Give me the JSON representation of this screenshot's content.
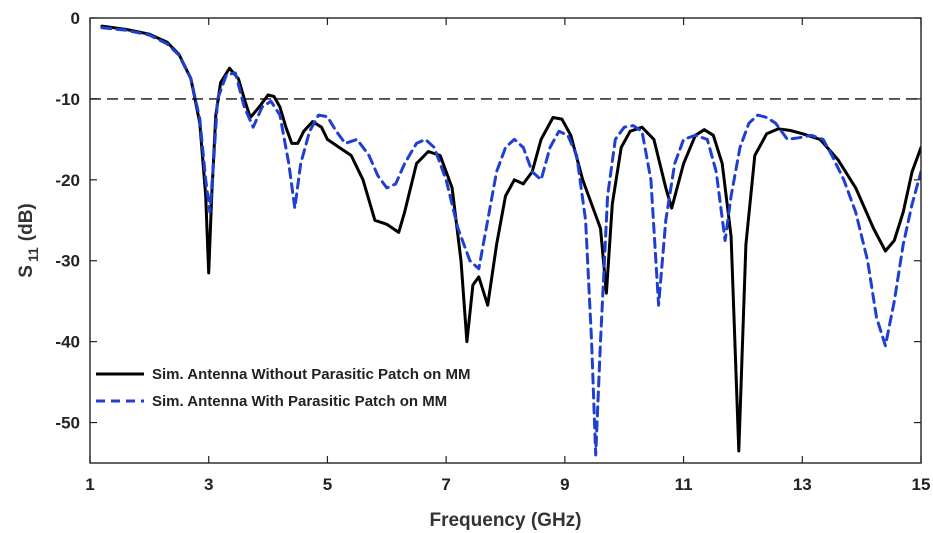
{
  "chart_data": {
    "type": "line",
    "xlabel": "Frequency (GHz)",
    "ylabel": {
      "base": "S",
      "sub": "11",
      "unit": "(dB)"
    },
    "xlim": [
      1,
      15
    ],
    "ylim": [
      -55,
      0
    ],
    "xticks": [
      "1",
      "3",
      "5",
      "7",
      "9",
      "11",
      "13",
      "15"
    ],
    "yticks": [
      "0",
      "-10",
      "-20",
      "-30",
      "-40",
      "-50"
    ],
    "reference_line": {
      "y": -10,
      "style": "dashed",
      "color": "#333333"
    },
    "legend_position": "lower-left",
    "series": [
      {
        "name": "Sim. Antenna Without Parasitic Patch on MM",
        "color": "#000000",
        "style": "solid",
        "points": [
          [
            1.2,
            -1.0
          ],
          [
            1.6,
            -1.4
          ],
          [
            2.0,
            -2.0
          ],
          [
            2.3,
            -3.0
          ],
          [
            2.5,
            -4.5
          ],
          [
            2.7,
            -7.5
          ],
          [
            2.85,
            -13
          ],
          [
            2.95,
            -22
          ],
          [
            3.0,
            -31.5
          ],
          [
            3.05,
            -22
          ],
          [
            3.12,
            -12
          ],
          [
            3.2,
            -8
          ],
          [
            3.35,
            -6.2
          ],
          [
            3.5,
            -7.5
          ],
          [
            3.6,
            -10
          ],
          [
            3.7,
            -12.3
          ],
          [
            3.85,
            -11
          ],
          [
            4.0,
            -9.5
          ],
          [
            4.1,
            -9.7
          ],
          [
            4.2,
            -11
          ],
          [
            4.3,
            -13.5
          ],
          [
            4.4,
            -15.5
          ],
          [
            4.5,
            -15.5
          ],
          [
            4.6,
            -14
          ],
          [
            4.75,
            -12.8
          ],
          [
            4.9,
            -13.5
          ],
          [
            5.0,
            -15
          ],
          [
            5.2,
            -16
          ],
          [
            5.4,
            -17
          ],
          [
            5.6,
            -20
          ],
          [
            5.8,
            -25
          ],
          [
            6.0,
            -25.5
          ],
          [
            6.2,
            -26.5
          ],
          [
            6.3,
            -24
          ],
          [
            6.5,
            -18
          ],
          [
            6.7,
            -16.5
          ],
          [
            6.9,
            -17
          ],
          [
            7.1,
            -21
          ],
          [
            7.25,
            -30
          ],
          [
            7.35,
            -40
          ],
          [
            7.45,
            -33
          ],
          [
            7.55,
            -32
          ],
          [
            7.7,
            -35.5
          ],
          [
            7.85,
            -28
          ],
          [
            8.0,
            -22
          ],
          [
            8.15,
            -20
          ],
          [
            8.3,
            -20.5
          ],
          [
            8.45,
            -19
          ],
          [
            8.6,
            -15
          ],
          [
            8.8,
            -12.3
          ],
          [
            8.95,
            -12.5
          ],
          [
            9.1,
            -14.5
          ],
          [
            9.3,
            -20
          ],
          [
            9.45,
            -23
          ],
          [
            9.6,
            -26
          ],
          [
            9.7,
            -34
          ],
          [
            9.8,
            -23
          ],
          [
            9.95,
            -16
          ],
          [
            10.1,
            -14
          ],
          [
            10.3,
            -13.5
          ],
          [
            10.5,
            -15
          ],
          [
            10.7,
            -21
          ],
          [
            10.8,
            -23.5
          ],
          [
            11.0,
            -18
          ],
          [
            11.2,
            -14.5
          ],
          [
            11.35,
            -13.8
          ],
          [
            11.5,
            -14.5
          ],
          [
            11.65,
            -18
          ],
          [
            11.8,
            -27
          ],
          [
            11.93,
            -53.5
          ],
          [
            12.05,
            -28
          ],
          [
            12.2,
            -17
          ],
          [
            12.4,
            -14.3
          ],
          [
            12.6,
            -13.7
          ],
          [
            12.8,
            -13.9
          ],
          [
            13.0,
            -14.3
          ],
          [
            13.3,
            -15
          ],
          [
            13.6,
            -17.5
          ],
          [
            13.9,
            -21
          ],
          [
            14.2,
            -26
          ],
          [
            14.4,
            -28.8
          ],
          [
            14.55,
            -27.5
          ],
          [
            14.7,
            -24
          ],
          [
            14.85,
            -19
          ],
          [
            15.0,
            -16
          ]
        ]
      },
      {
        "name": "Sim. Antenna With Parasitic Patch on MM",
        "color": "#1e3fd1",
        "style": "dashed",
        "points": [
          [
            1.2,
            -1.2
          ],
          [
            1.6,
            -1.5
          ],
          [
            2.0,
            -2.1
          ],
          [
            2.3,
            -3.2
          ],
          [
            2.5,
            -4.6
          ],
          [
            2.7,
            -7.5
          ],
          [
            2.85,
            -12.5
          ],
          [
            2.95,
            -20
          ],
          [
            3.02,
            -24
          ],
          [
            3.08,
            -18
          ],
          [
            3.15,
            -10
          ],
          [
            3.3,
            -7
          ],
          [
            3.45,
            -6.8
          ],
          [
            3.6,
            -11
          ],
          [
            3.75,
            -13.5
          ],
          [
            3.9,
            -11
          ],
          [
            4.05,
            -10.3
          ],
          [
            4.2,
            -12
          ],
          [
            4.35,
            -18
          ],
          [
            4.45,
            -23.5
          ],
          [
            4.55,
            -18
          ],
          [
            4.7,
            -14
          ],
          [
            4.85,
            -12
          ],
          [
            5.0,
            -12.2
          ],
          [
            5.15,
            -14
          ],
          [
            5.3,
            -15.5
          ],
          [
            5.5,
            -15
          ],
          [
            5.7,
            -17
          ],
          [
            5.85,
            -19.5
          ],
          [
            6.0,
            -21
          ],
          [
            6.15,
            -20.5
          ],
          [
            6.3,
            -18
          ],
          [
            6.5,
            -15.5
          ],
          [
            6.65,
            -15
          ],
          [
            6.8,
            -16
          ],
          [
            7.0,
            -20
          ],
          [
            7.2,
            -26
          ],
          [
            7.4,
            -30
          ],
          [
            7.55,
            -31
          ],
          [
            7.7,
            -25
          ],
          [
            7.85,
            -19
          ],
          [
            8.0,
            -16
          ],
          [
            8.15,
            -15
          ],
          [
            8.3,
            -16
          ],
          [
            8.45,
            -19
          ],
          [
            8.6,
            -20
          ],
          [
            8.75,
            -16
          ],
          [
            8.9,
            -14
          ],
          [
            9.05,
            -14.5
          ],
          [
            9.2,
            -17
          ],
          [
            9.35,
            -25
          ],
          [
            9.45,
            -40
          ],
          [
            9.52,
            -54
          ],
          [
            9.6,
            -40
          ],
          [
            9.72,
            -22
          ],
          [
            9.85,
            -15
          ],
          [
            10.0,
            -13.5
          ],
          [
            10.15,
            -13.3
          ],
          [
            10.3,
            -14
          ],
          [
            10.45,
            -20
          ],
          [
            10.58,
            -35.5
          ],
          [
            10.7,
            -25
          ],
          [
            10.85,
            -18
          ],
          [
            11.0,
            -15
          ],
          [
            11.2,
            -14.5
          ],
          [
            11.4,
            -15
          ],
          [
            11.55,
            -19
          ],
          [
            11.7,
            -27.5
          ],
          [
            11.8,
            -22
          ],
          [
            11.95,
            -16
          ],
          [
            12.1,
            -13
          ],
          [
            12.25,
            -12
          ],
          [
            12.4,
            -12.3
          ],
          [
            12.55,
            -13
          ],
          [
            12.75,
            -15
          ],
          [
            12.95,
            -14.8
          ],
          [
            13.15,
            -14.5
          ],
          [
            13.35,
            -15
          ],
          [
            13.5,
            -17
          ],
          [
            13.7,
            -20
          ],
          [
            13.9,
            -24
          ],
          [
            14.1,
            -30
          ],
          [
            14.25,
            -37
          ],
          [
            14.4,
            -40.5
          ],
          [
            14.55,
            -35
          ],
          [
            14.7,
            -28
          ],
          [
            14.85,
            -23
          ],
          [
            15.0,
            -19
          ]
        ]
      }
    ]
  }
}
